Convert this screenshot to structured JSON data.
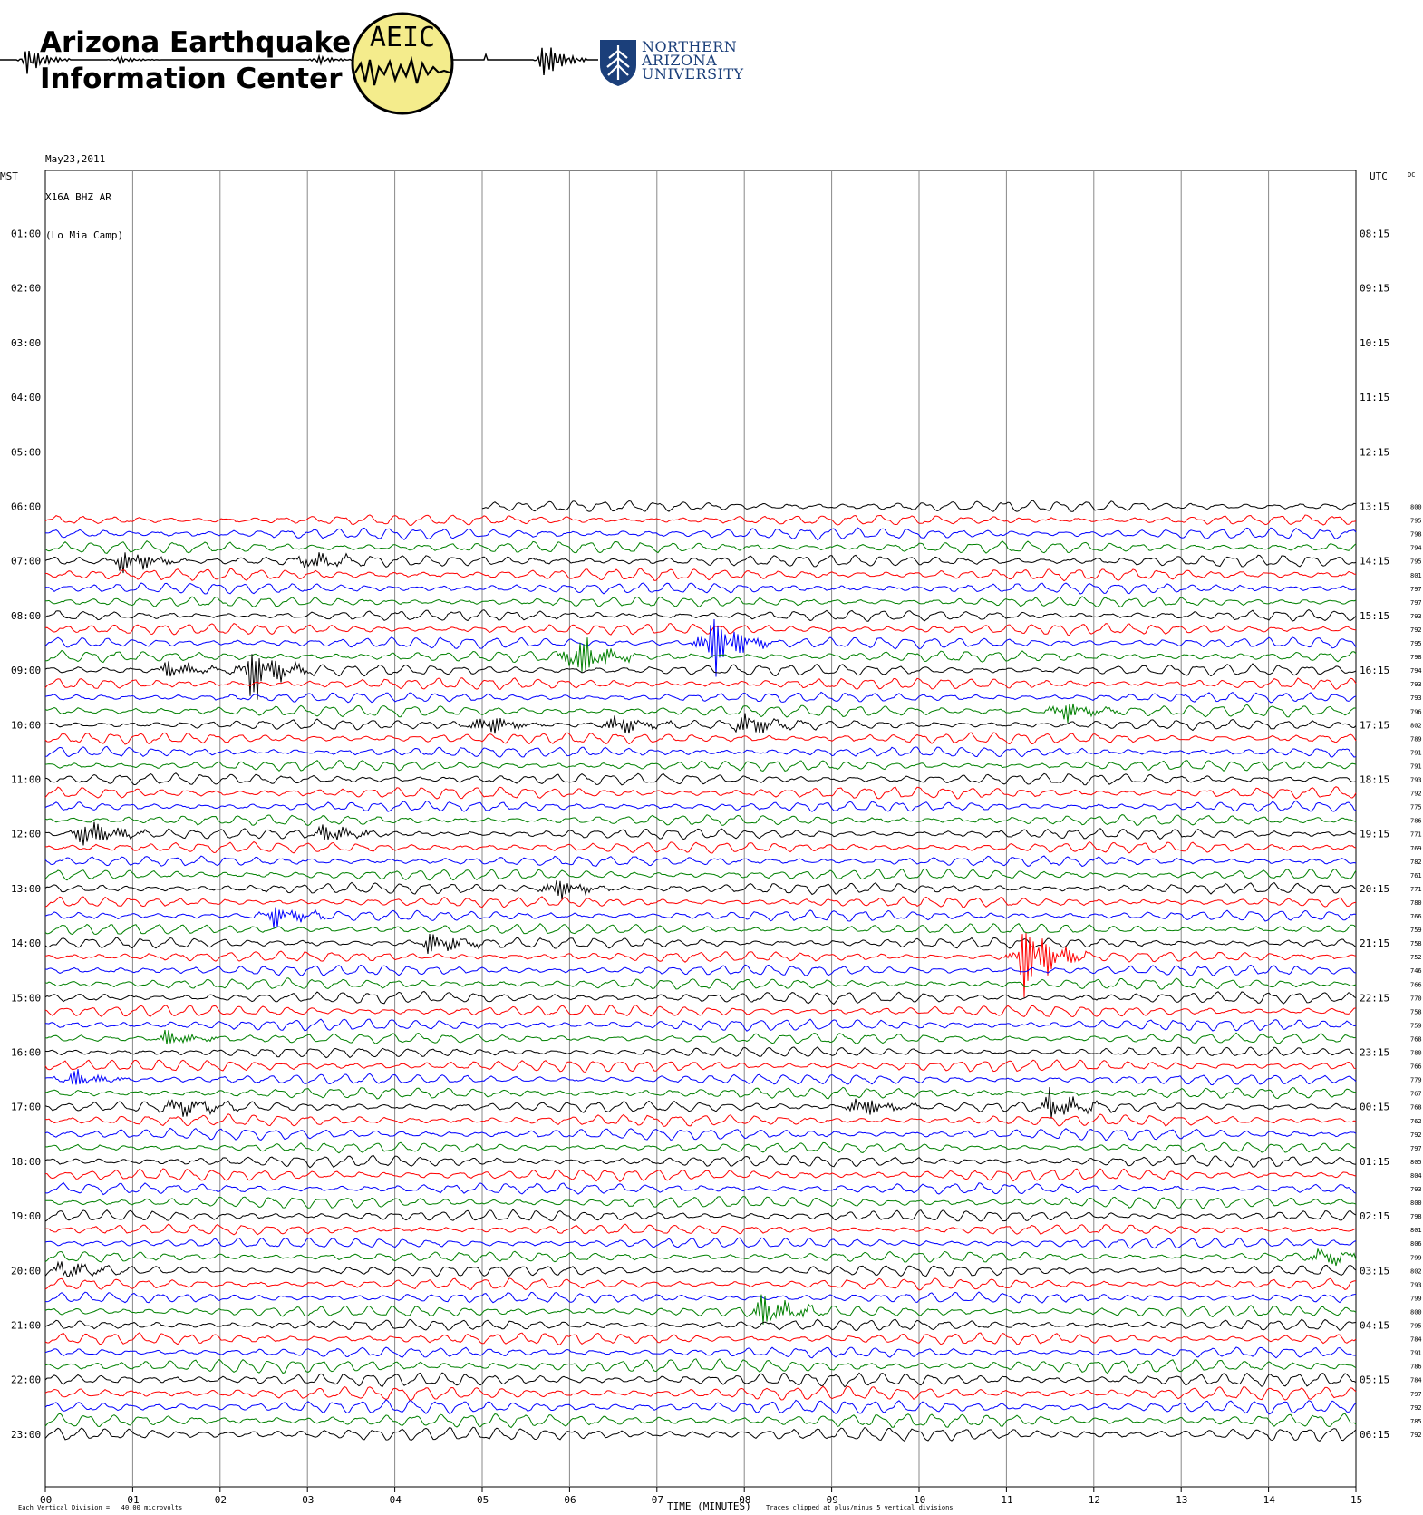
{
  "header": {
    "title_line1": "Arizona Earthquake",
    "title_line2": "Information Center",
    "logo_text": "AEIC",
    "university_line1": "NORTHERN",
    "university_line2": "ARIZONA",
    "university_line3": "UNIVERSITY"
  },
  "station": {
    "date": "May23,2011",
    "channel": "X16A BHZ AR",
    "site": "(Lo Mia Camp)"
  },
  "axes": {
    "left_title": "MST",
    "right_title": "UTC",
    "dc_title": "DC",
    "x_title": "TIME (MINUTES)",
    "footer_left": "Each Vertical Division =   40.00 microvolts",
    "footer_right": "Traces clipped at plus/minus 5 vertical divisions"
  },
  "chart_data": {
    "type": "line",
    "title": "",
    "xlabel": "TIME (MINUTES)",
    "ylabel": "",
    "xlim": [
      0,
      15
    ],
    "x_ticks": [
      "00",
      "01",
      "02",
      "03",
      "04",
      "05",
      "06",
      "07",
      "08",
      "09",
      "10",
      "11",
      "12",
      "13",
      "14",
      "15"
    ],
    "mst_hour_labels": [
      "01:00",
      "02:00",
      "03:00",
      "04:00",
      "05:00",
      "06:00",
      "07:00",
      "08:00",
      "09:00",
      "10:00",
      "11:00",
      "12:00",
      "13:00",
      "14:00",
      "15:00",
      "16:00",
      "17:00",
      "18:00",
      "19:00",
      "20:00",
      "21:00",
      "22:00",
      "23:00"
    ],
    "utc_hour_labels": [
      "08:15",
      "09:15",
      "10:15",
      "11:15",
      "12:15",
      "13:15",
      "14:15",
      "15:15",
      "16:15",
      "17:15",
      "18:15",
      "19:15",
      "20:15",
      "21:15",
      "22:15",
      "23:15",
      "00:15",
      "01:15",
      "02:15",
      "03:15",
      "04:15",
      "05:15",
      "06:15"
    ],
    "rows_per_hour": 4,
    "minutes_per_row": 15,
    "first_row_start_minute": 5,
    "trace_colors": [
      "#000000",
      "#ff0000",
      "#0000ff",
      "#008000"
    ],
    "dc_values": [
      800,
      795,
      798,
      794,
      795,
      801,
      797,
      797,
      793,
      792,
      795,
      798,
      794,
      793,
      793,
      796,
      802,
      789,
      791,
      791,
      793,
      792,
      775,
      786,
      771,
      769,
      782,
      761,
      771,
      780,
      766,
      759,
      758,
      752,
      746,
      766,
      770,
      758,
      759,
      768,
      780,
      766,
      779,
      767,
      768,
      762,
      792,
      797,
      805,
      804,
      793,
      800,
      798,
      801,
      806,
      799,
      802,
      793,
      799,
      800,
      795,
      784,
      791,
      786,
      784,
      797,
      792,
      785,
      792
    ],
    "events": [
      {
        "trace": 4,
        "minute": 0.9,
        "amplitude": 2.2
      },
      {
        "trace": 4,
        "minute": 3.0,
        "amplitude": 1.6
      },
      {
        "trace": 10,
        "minute": 7.6,
        "amplitude": 6
      },
      {
        "trace": 11,
        "minute": 6.05,
        "amplitude": 4
      },
      {
        "trace": 12,
        "minute": 1.4,
        "amplitude": 1.5
      },
      {
        "trace": 12,
        "minute": 2.35,
        "amplitude": 5
      },
      {
        "trace": 15,
        "minute": 11.6,
        "amplitude": 2
      },
      {
        "trace": 16,
        "minute": 5.0,
        "amplitude": 2
      },
      {
        "trace": 16,
        "minute": 6.5,
        "amplitude": 2
      },
      {
        "trace": 16,
        "minute": 8.0,
        "amplitude": 2
      },
      {
        "trace": 24,
        "minute": 0.45,
        "amplitude": 3
      },
      {
        "trace": 24,
        "minute": 3.2,
        "amplitude": 1.5
      },
      {
        "trace": 28,
        "minute": 5.8,
        "amplitude": 2
      },
      {
        "trace": 30,
        "minute": 2.6,
        "amplitude": 2
      },
      {
        "trace": 32,
        "minute": 4.4,
        "amplitude": 2
      },
      {
        "trace": 33,
        "minute": 11.2,
        "amplitude": 7
      },
      {
        "trace": 39,
        "minute": 1.4,
        "amplitude": 1.5
      },
      {
        "trace": 42,
        "minute": 0.3,
        "amplitude": 1.5
      },
      {
        "trace": 44,
        "minute": 1.5,
        "amplitude": 2
      },
      {
        "trace": 44,
        "minute": 9.3,
        "amplitude": 2
      },
      {
        "trace": 44,
        "minute": 11.5,
        "amplitude": 2.5
      },
      {
        "trace": 56,
        "minute": 0.2,
        "amplitude": 1.5
      },
      {
        "trace": 55,
        "minute": 14.6,
        "amplitude": 1.5
      },
      {
        "trace": 59,
        "minute": 8.2,
        "amplitude": 3
      }
    ]
  }
}
